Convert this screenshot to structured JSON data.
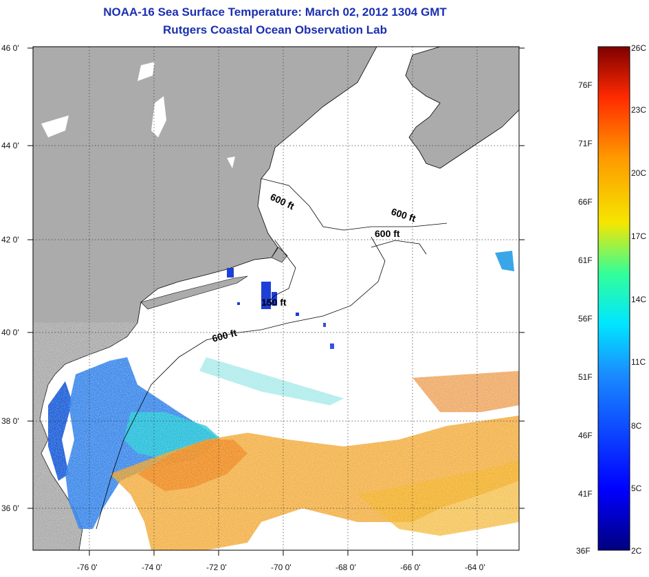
{
  "title": {
    "line1": "NOAA-16 Sea Surface Temperature:  March 02, 2012 1304 GMT",
    "line2": "Rutgers Coastal Ocean Observation Lab"
  },
  "map": {
    "lat_ticks": [
      "46 0'",
      "44 0'",
      "42 0'",
      "40 0'",
      "38 0'",
      "36 0'"
    ],
    "lon_ticks": [
      "-76 0'",
      "-74 0'",
      "-72 0'",
      "-70 0'",
      "-68 0'",
      "-66 0'",
      "-64 0'"
    ],
    "contour_labels": [
      "600 ft",
      "600 ft",
      "600 ft",
      "150 ft",
      "600 ft"
    ]
  },
  "colorbar": {
    "celsius": [
      "26C",
      "23C",
      "20C",
      "17C",
      "14C",
      "11C",
      "8C",
      "5C",
      "2C"
    ],
    "fahrenheit": [
      "76F",
      "71F",
      "66F",
      "61F",
      "56F",
      "51F",
      "46F",
      "41F",
      "36F"
    ],
    "colors": [
      "#7f0000",
      "#ff2a00",
      "#ff9900",
      "#f5e600",
      "#33ff99",
      "#00e6ff",
      "#1a8cff",
      "#0000ff",
      "#00007f"
    ]
  },
  "colors": {
    "land": "#ababab",
    "ocean": "#ffffff",
    "title": "#1a2fb0"
  }
}
